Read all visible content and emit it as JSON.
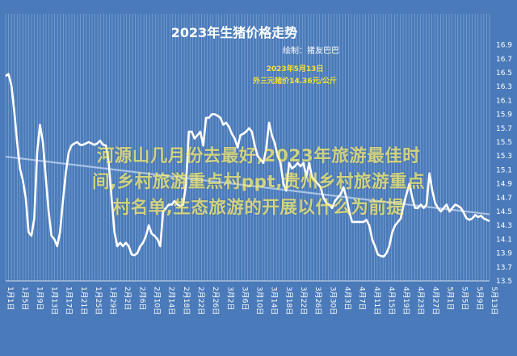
{
  "chart_data": {
    "type": "line",
    "title": "2023年生猪价格走势",
    "subtitle": "绘制：猪友巴巴",
    "annotation": {
      "lines": [
        "2023年5月13日",
        "外三元猪价14.36元/公斤"
      ],
      "color": "#f5e233"
    },
    "ylim": [
      13.5,
      17.0
    ],
    "y_ticks": [
      "16.9",
      "16.7",
      "16.5",
      "16.3",
      "16.1",
      "15.9",
      "15.7",
      "15.5",
      "15.3",
      "15.1",
      "14.9",
      "14.7",
      "14.5",
      "14.3",
      "14.1",
      "13.9",
      "13.7",
      "13.5"
    ],
    "x_tick_labels": [
      "1月1日",
      "1月5日",
      "1月9日",
      "1月13日",
      "1月17日",
      "1月21日",
      "1月25日",
      "1月29日",
      "2月2日",
      "2月6日",
      "2月10日",
      "2月14日",
      "2月18日",
      "2月22日",
      "2月26日",
      "3月2日",
      "3月6日",
      "3月10日",
      "3月14日",
      "3月18日",
      "3月22日",
      "3月26日",
      "3月30日",
      "4月3日",
      "4月7日",
      "4月11日",
      "4月15日",
      "4月19日",
      "4月23日",
      "4月27日",
      "5月1日",
      "5月5日",
      "5月9日",
      "5月13日"
    ],
    "grid": "vertical",
    "series": [
      {
        "values": [
          16.45,
          16.48,
          16.32,
          15.95,
          15.5,
          15.12,
          14.95,
          14.7,
          14.2,
          14.15,
          14.4,
          15.35,
          15.75,
          15.5,
          15.0,
          14.5,
          14.15,
          14.1,
          14.0,
          14.2,
          14.65,
          15.05,
          15.35,
          15.45,
          15.48,
          15.5,
          15.46,
          15.46,
          15.48,
          15.5,
          15.48,
          15.46,
          15.48,
          15.52,
          15.46,
          15.45,
          15.2,
          14.7,
          14.2,
          14.0,
          14.05,
          14.0,
          14.05,
          14.0,
          13.88,
          13.87,
          13.9,
          14.0,
          14.05,
          14.15,
          14.3,
          14.18,
          14.15,
          14.1,
          14.0,
          14.5,
          14.55,
          14.6,
          14.6,
          14.65,
          14.6,
          14.58,
          14.6,
          14.9,
          15.65,
          15.65,
          15.55,
          15.6,
          15.65,
          15.45,
          15.85,
          15.85,
          15.9,
          15.9,
          15.88,
          15.85,
          15.75,
          15.78,
          15.72,
          15.62,
          15.55,
          15.42,
          15.6,
          15.62,
          15.65,
          15.7,
          15.65,
          15.45,
          15.3,
          15.25,
          15.2,
          15.4,
          15.78,
          15.6,
          15.48,
          15.3,
          15.2,
          14.9,
          14.8,
          15.2,
          15.12,
          15.15,
          15.2,
          15.15,
          15.2,
          15.0,
          15.2,
          15.0,
          14.95,
          14.9,
          14.85,
          14.7,
          14.62,
          14.6,
          14.55,
          14.65,
          14.7,
          14.75,
          14.85,
          14.7,
          14.5,
          14.35,
          14.35,
          14.35,
          14.35,
          14.35,
          14.38,
          14.3,
          14.1,
          14.0,
          13.88,
          13.86,
          13.85,
          13.9,
          14.0,
          14.2,
          14.3,
          14.35,
          14.4,
          14.6,
          14.75,
          14.9,
          14.7,
          14.55,
          14.55,
          14.6,
          14.55,
          14.6,
          15.05,
          14.8,
          14.62,
          14.55,
          14.5,
          14.55,
          14.6,
          14.5,
          14.55,
          14.6,
          14.58,
          14.55,
          14.48,
          14.4,
          14.38,
          14.4,
          14.45,
          14.42,
          14.44,
          14.4,
          14.38,
          14.36
        ]
      },
      {
        "values": [
          15.29,
          14.46
        ]
      }
    ],
    "colors": {
      "background": "#4a7ab9",
      "line": "#ffffff",
      "trend": "#a9c3e3",
      "grid": "#8aaed8"
    }
  },
  "overlay_text": [
    "河源山几月份去最好,2023年旅游最佳时",
    "间,乡村旅游重点村ppt,贵州乡村旅游重点",
    "村名单,生态旅游的开展以什么为前提"
  ]
}
